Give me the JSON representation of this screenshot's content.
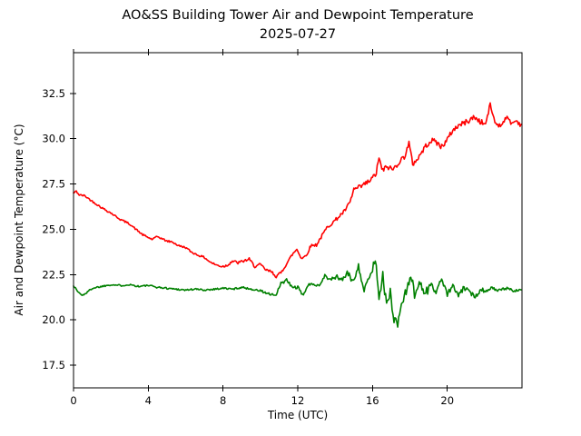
{
  "chart_data": {
    "type": "line",
    "title": "AO&SS Building Tower Air and Dewpoint Temperature",
    "subtitle": "2025-07-27",
    "xlabel": "Time (UTC)",
    "ylabel": "Air and Dewpoint Temperature (°C)",
    "xlim": [
      0,
      24
    ],
    "ylim": [
      16.25,
      34.75
    ],
    "xticks": [
      0,
      4,
      8,
      12,
      16,
      20
    ],
    "yticks": [
      17.5,
      20.0,
      22.5,
      25.0,
      27.5,
      30.0,
      32.5
    ],
    "grid": false,
    "legend": "none",
    "background": "#ffffff",
    "axis_color": "#000000",
    "series": [
      {
        "key": "air-temperature",
        "name": "Air Temperature",
        "color": "#ff0000",
        "points": [
          [
            0,
            27.0
          ],
          [
            0.15,
            27.1
          ],
          [
            0.3,
            26.9
          ],
          [
            0.6,
            26.85
          ],
          [
            1,
            26.55
          ],
          [
            1.5,
            26.2
          ],
          [
            2,
            25.9
          ],
          [
            2.5,
            25.55
          ],
          [
            3,
            25.3
          ],
          [
            3.4,
            24.95
          ],
          [
            3.7,
            24.7
          ],
          [
            4,
            24.55
          ],
          [
            4.2,
            24.45
          ],
          [
            4.5,
            24.6
          ],
          [
            4.8,
            24.45
          ],
          [
            5,
            24.35
          ],
          [
            5.3,
            24.3
          ],
          [
            5.6,
            24.1
          ],
          [
            6,
            24.0
          ],
          [
            6.3,
            23.75
          ],
          [
            6.6,
            23.6
          ],
          [
            7,
            23.45
          ],
          [
            7.3,
            23.2
          ],
          [
            7.6,
            23.05
          ],
          [
            7.9,
            22.95
          ],
          [
            8.2,
            23.0
          ],
          [
            8.5,
            23.25
          ],
          [
            8.8,
            23.15
          ],
          [
            9.1,
            23.25
          ],
          [
            9.4,
            23.35
          ],
          [
            9.7,
            22.95
          ],
          [
            10,
            23.05
          ],
          [
            10.3,
            22.75
          ],
          [
            10.6,
            22.65
          ],
          [
            10.85,
            22.4
          ],
          [
            11.1,
            22.6
          ],
          [
            11.4,
            23.1
          ],
          [
            11.7,
            23.6
          ],
          [
            11.95,
            23.9
          ],
          [
            12.2,
            23.4
          ],
          [
            12.45,
            23.55
          ],
          [
            12.7,
            24.1
          ],
          [
            13,
            24.15
          ],
          [
            13.3,
            24.65
          ],
          [
            13.6,
            25.15
          ],
          [
            13.9,
            25.4
          ],
          [
            14.2,
            25.7
          ],
          [
            14.5,
            26.0
          ],
          [
            14.8,
            26.5
          ],
          [
            15,
            27.2
          ],
          [
            15.3,
            27.3
          ],
          [
            15.6,
            27.5
          ],
          [
            15.9,
            27.7
          ],
          [
            16.2,
            28.1
          ],
          [
            16.35,
            29.0
          ],
          [
            16.5,
            28.25
          ],
          [
            16.8,
            28.45
          ],
          [
            17.1,
            28.3
          ],
          [
            17.4,
            28.7
          ],
          [
            17.7,
            29.0
          ],
          [
            17.95,
            29.75
          ],
          [
            18.15,
            28.6
          ],
          [
            18.45,
            28.95
          ],
          [
            18.75,
            29.45
          ],
          [
            19.05,
            29.85
          ],
          [
            19.35,
            29.9
          ],
          [
            19.65,
            29.55
          ],
          [
            19.95,
            29.85
          ],
          [
            20.25,
            30.4
          ],
          [
            20.55,
            30.7
          ],
          [
            20.85,
            30.85
          ],
          [
            21.15,
            31.0
          ],
          [
            21.45,
            31.2
          ],
          [
            21.75,
            30.95
          ],
          [
            22.05,
            30.8
          ],
          [
            22.3,
            31.9
          ],
          [
            22.55,
            30.9
          ],
          [
            22.85,
            30.7
          ],
          [
            23.15,
            31.2
          ],
          [
            23.45,
            30.85
          ],
          [
            23.7,
            31.0
          ],
          [
            23.95,
            30.75
          ]
        ],
        "noise_profile": [
          [
            0,
            8,
            0.05
          ],
          [
            8,
            13,
            0.08
          ],
          [
            13,
            15,
            0.1
          ],
          [
            15,
            22,
            0.15
          ],
          [
            22,
            24,
            0.12
          ]
        ]
      },
      {
        "key": "dewpoint-temperature",
        "name": "Dewpoint Temperature",
        "color": "#008000",
        "points": [
          [
            0,
            21.9
          ],
          [
            0.2,
            21.6
          ],
          [
            0.45,
            21.35
          ],
          [
            0.7,
            21.5
          ],
          [
            1,
            21.75
          ],
          [
            1.5,
            21.85
          ],
          [
            2,
            21.95
          ],
          [
            2.5,
            21.9
          ],
          [
            3,
            21.95
          ],
          [
            3.5,
            21.85
          ],
          [
            4,
            21.9
          ],
          [
            4.5,
            21.8
          ],
          [
            5,
            21.75
          ],
          [
            5.5,
            21.7
          ],
          [
            6,
            21.65
          ],
          [
            6.5,
            21.7
          ],
          [
            7,
            21.65
          ],
          [
            7.5,
            21.7
          ],
          [
            8,
            21.75
          ],
          [
            8.5,
            21.7
          ],
          [
            9,
            21.8
          ],
          [
            9.5,
            21.7
          ],
          [
            10,
            21.6
          ],
          [
            10.4,
            21.45
          ],
          [
            10.8,
            21.3
          ],
          [
            11.1,
            22.0
          ],
          [
            11.4,
            22.2
          ],
          [
            11.7,
            21.8
          ],
          [
            12,
            21.8
          ],
          [
            12.25,
            21.35
          ],
          [
            12.55,
            21.9
          ],
          [
            12.85,
            22.0
          ],
          [
            13.15,
            21.9
          ],
          [
            13.45,
            22.45
          ],
          [
            13.75,
            22.2
          ],
          [
            14.05,
            22.4
          ],
          [
            14.35,
            22.2
          ],
          [
            14.65,
            22.6
          ],
          [
            14.95,
            22.1
          ],
          [
            15.25,
            23.0
          ],
          [
            15.55,
            21.6
          ],
          [
            15.85,
            22.4
          ],
          [
            16.15,
            23.3
          ],
          [
            16.35,
            21.4
          ],
          [
            16.55,
            22.4
          ],
          [
            16.75,
            20.8
          ],
          [
            16.95,
            21.5
          ],
          [
            17.15,
            20.1
          ],
          [
            17.35,
            19.75
          ],
          [
            17.55,
            20.9
          ],
          [
            17.8,
            21.6
          ],
          [
            18.05,
            22.6
          ],
          [
            18.25,
            21.3
          ],
          [
            18.5,
            22.2
          ],
          [
            18.8,
            21.4
          ],
          [
            19.1,
            22.0
          ],
          [
            19.4,
            21.5
          ],
          [
            19.7,
            22.3
          ],
          [
            20,
            21.4
          ],
          [
            20.3,
            21.9
          ],
          [
            20.6,
            21.3
          ],
          [
            20.9,
            21.8
          ],
          [
            21.2,
            21.5
          ],
          [
            21.5,
            21.3
          ],
          [
            21.8,
            21.7
          ],
          [
            22.1,
            21.6
          ],
          [
            22.4,
            21.8
          ],
          [
            22.7,
            21.6
          ],
          [
            23,
            21.7
          ],
          [
            23.3,
            21.75
          ],
          [
            23.6,
            21.6
          ],
          [
            23.95,
            21.65
          ]
        ],
        "noise_profile": [
          [
            0,
            10,
            0.05
          ],
          [
            10,
            14,
            0.09
          ],
          [
            14,
            16,
            0.16
          ],
          [
            16,
            19,
            0.28
          ],
          [
            19,
            22,
            0.13
          ],
          [
            22,
            24,
            0.07
          ]
        ]
      }
    ]
  }
}
